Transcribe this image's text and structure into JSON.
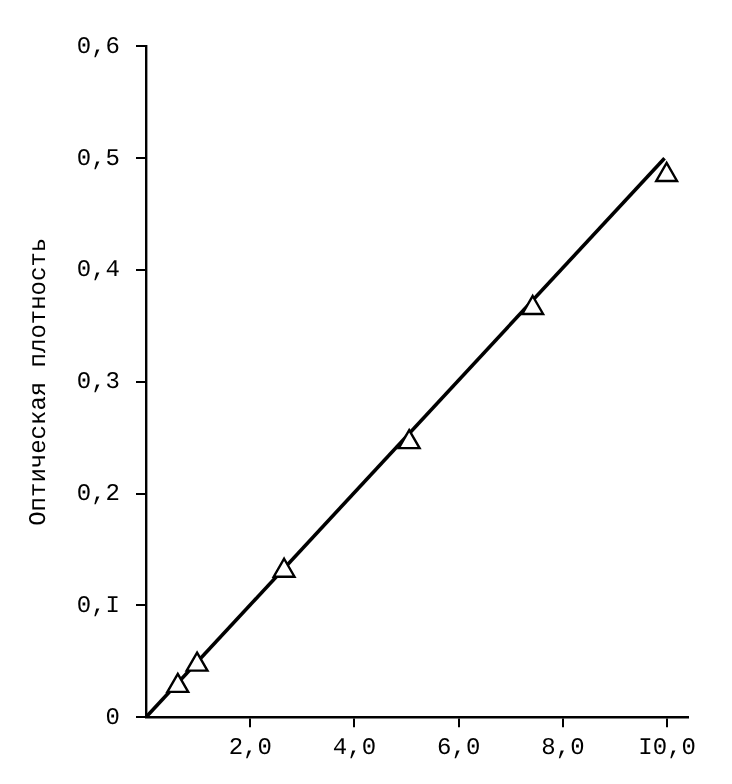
{
  "chart_data": {
    "type": "scatter",
    "ylabel": "Оптическая плотность",
    "xlim": [
      0,
      10.4
    ],
    "ylim": [
      0,
      0.6
    ],
    "xticks": [
      {
        "value": 2,
        "label": "2,0"
      },
      {
        "value": 4,
        "label": "4,0"
      },
      {
        "value": 6,
        "label": "6,0"
      },
      {
        "value": 8,
        "label": "8,0"
      },
      {
        "value": 10,
        "label": "I0,0"
      }
    ],
    "yticks": [
      0,
      {
        "value": 0.1,
        "label": "0,I"
      },
      {
        "value": 0.2,
        "label": "0,2"
      },
      {
        "value": 0.3,
        "label": "0,3"
      },
      {
        "value": 0.4,
        "label": "0,4"
      },
      {
        "value": 0.5,
        "label": "0,5"
      },
      {
        "value": 0.6,
        "label": "0,6"
      }
    ],
    "grid": false,
    "series": [
      {
        "type": "scatter",
        "color": "#000000",
        "marker": "triangle",
        "x": [
          0.61,
          0.98,
          2.65,
          5.05,
          7.42,
          9.99
        ],
        "values": [
          0.028,
          0.047,
          0.131,
          0.246,
          0.366,
          0.485
        ]
      },
      {
        "type": "line",
        "color": "#000000",
        "marker": "none",
        "line_style": "solid",
        "x": [
          0,
          9.95
        ],
        "values": [
          0,
          0.5
        ]
      }
    ]
  }
}
